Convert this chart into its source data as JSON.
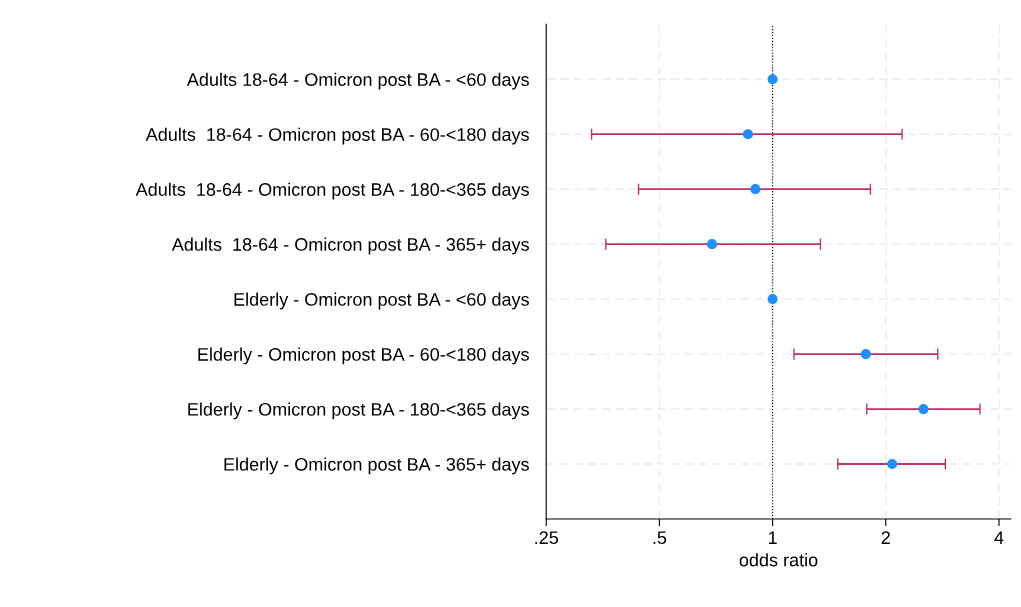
{
  "chart_data": {
    "type": "scatter",
    "orientation": "horizontal",
    "log": "x",
    "xlabel": "odds ratio",
    "categories": [
      "Adults 18-64 - Omicron post BA - <60 days",
      "Adults  18-64 - Omicron post BA - 60-<180 days",
      "Adults  18-64 - Omicron post BA - 180-<365 days",
      "Adults  18-64 - Omicron post BA - 365+ days",
      "Elderly - Omicron post BA - <60 days",
      "Elderly - Omicron post BA - 60-<180 days",
      "Elderly - Omicron post BA - 180-<365 days",
      "Elderly - Omicron post BA - 365+ days"
    ],
    "series": [
      {
        "color": "#1e90ff",
        "values": [
          1,
          0.86,
          0.9,
          0.69,
          1,
          1.77,
          2.52,
          2.08
        ],
        "errors": [
          null,
          [
            0.33,
            2.21
          ],
          [
            0.44,
            1.82
          ],
          [
            0.36,
            1.34
          ],
          null,
          [
            1.14,
            2.75
          ],
          [
            1.78,
            3.56
          ],
          [
            1.49,
            2.88
          ]
        ]
      }
    ],
    "xlim": [
      0.25,
      4.3
    ],
    "xticks": [
      {
        "value": 0.25,
        "label": ".25"
      },
      {
        "value": 0.5,
        "label": ".5"
      },
      1,
      2,
      4
    ],
    "ref_lines": [
      {
        "axis": "x",
        "value": 1,
        "color": "#000000",
        "line_style": "dotted"
      }
    ],
    "grid": true,
    "marker": "circle",
    "legend": false
  }
}
